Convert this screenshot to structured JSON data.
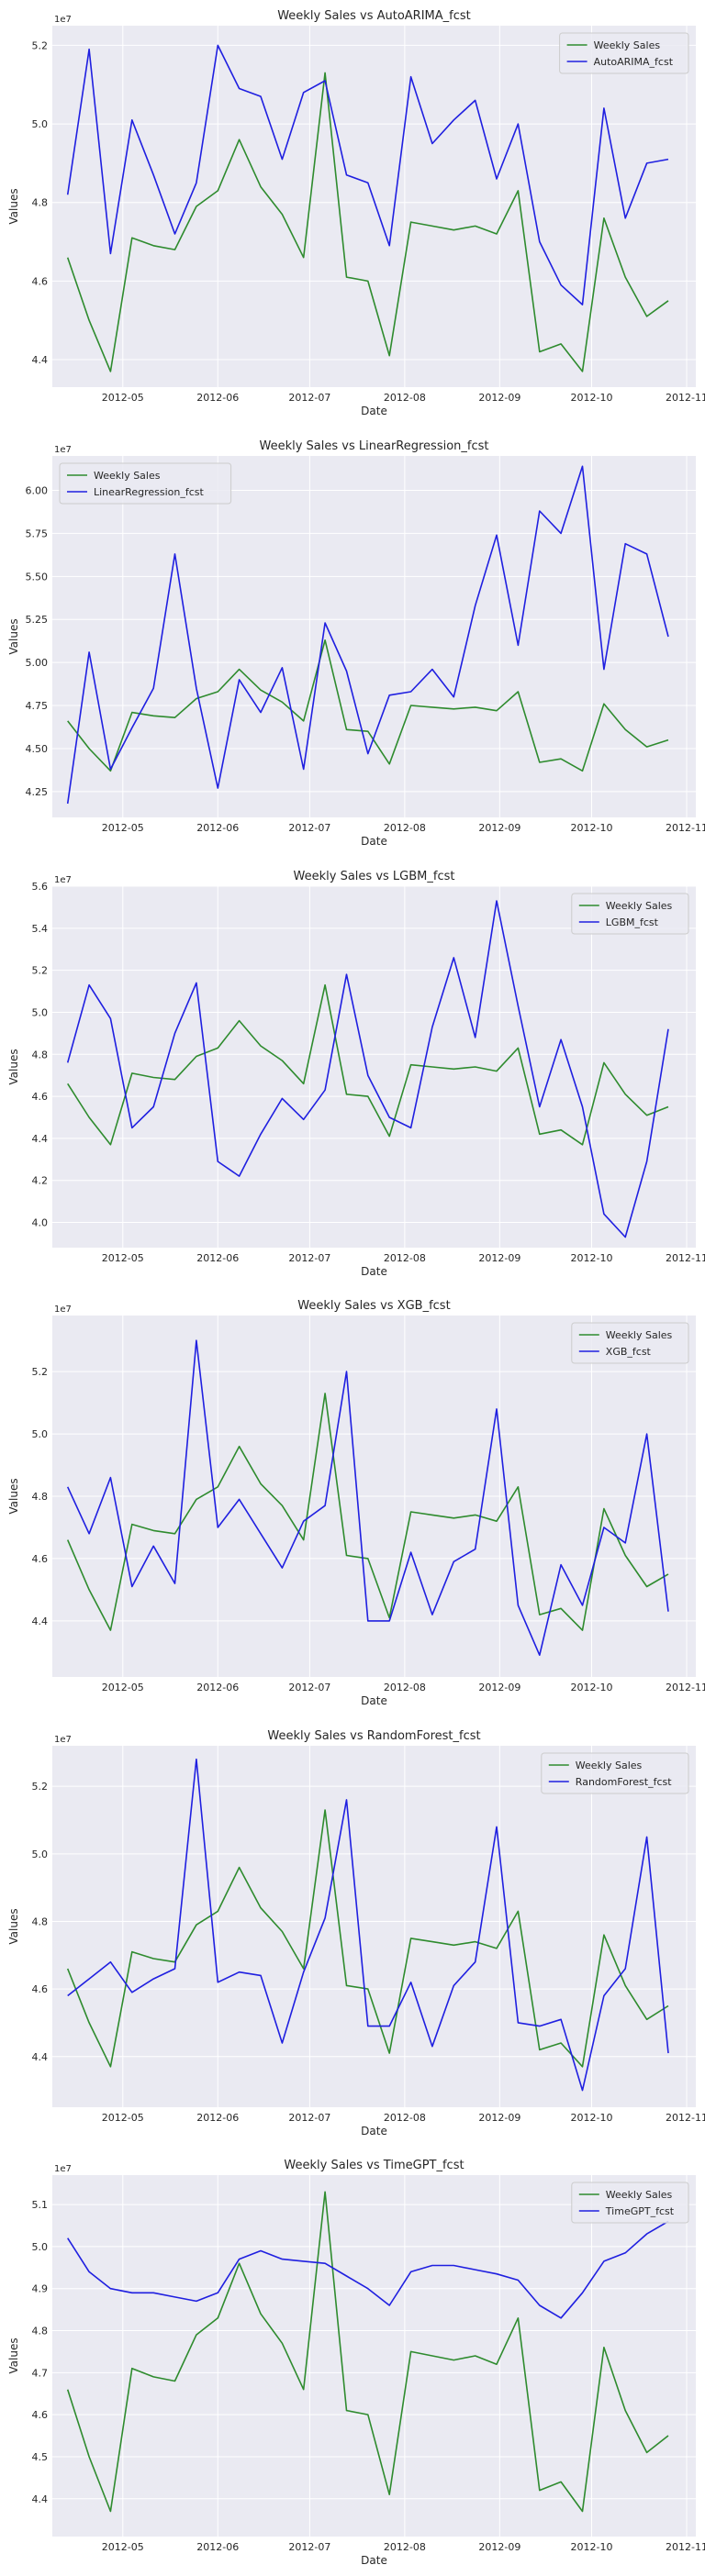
{
  "chart_data": [
    {
      "type": "line",
      "title": "Weekly Sales vs AutoARIMA_fcst",
      "xlabel": "Date",
      "ylabel": "Values",
      "offset_label": "1e7",
      "xlim": [
        "2012-04-08",
        "2012-11-04"
      ],
      "ylim": [
        4.33,
        5.25
      ],
      "yticks": [
        4.4,
        4.6,
        4.8,
        5.0,
        5.2
      ],
      "legend": "top-right",
      "grid": true,
      "series": [
        {
          "name": "Weekly Sales",
          "color": "#2e8b2e",
          "values": [
            4.66,
            4.5,
            4.37,
            4.71,
            4.69,
            4.68,
            4.79,
            4.83,
            4.96,
            4.84,
            4.77,
            4.66,
            5.13,
            4.61,
            4.6,
            4.41,
            4.75,
            4.74,
            4.73,
            4.74,
            4.72,
            4.83,
            4.42,
            4.44,
            4.37,
            4.76,
            4.61,
            4.51,
            4.55
          ]
        },
        {
          "name": "AutoARIMA_fcst",
          "color": "#1f1fe0",
          "values": [
            4.82,
            5.19,
            4.67,
            5.01,
            4.87,
            4.72,
            4.85,
            5.2,
            5.09,
            5.07,
            4.91,
            5.08,
            5.11,
            4.87,
            4.85,
            4.69,
            5.12,
            4.95,
            5.01,
            5.06,
            4.86,
            5.0,
            4.7,
            4.59,
            4.54,
            5.04,
            4.76,
            4.9,
            4.91
          ]
        }
      ]
    },
    {
      "type": "line",
      "title": "Weekly Sales vs LinearRegression_fcst",
      "xlabel": "Date",
      "ylabel": "Values",
      "offset_label": "1e7",
      "xlim": [
        "2012-04-08",
        "2012-11-04"
      ],
      "ylim": [
        4.1,
        6.2
      ],
      "yticks": [
        4.25,
        4.5,
        4.75,
        5.0,
        5.25,
        5.5,
        5.75,
        6.0
      ],
      "legend": "top-left",
      "grid": true,
      "series": [
        {
          "name": "Weekly Sales",
          "color": "#2e8b2e",
          "values": [
            4.66,
            4.5,
            4.37,
            4.71,
            4.69,
            4.68,
            4.79,
            4.83,
            4.96,
            4.84,
            4.77,
            4.66,
            5.13,
            4.61,
            4.6,
            4.41,
            4.75,
            4.74,
            4.73,
            4.74,
            4.72,
            4.83,
            4.42,
            4.44,
            4.37,
            4.76,
            4.61,
            4.51,
            4.55
          ]
        },
        {
          "name": "LinearRegression_fcst",
          "color": "#1f1fe0",
          "values": [
            4.18,
            5.06,
            4.38,
            4.62,
            4.85,
            5.63,
            4.85,
            4.27,
            4.9,
            4.71,
            4.97,
            4.38,
            5.23,
            4.95,
            4.47,
            4.81,
            4.83,
            4.96,
            4.8,
            5.33,
            5.74,
            5.1,
            5.88,
            5.75,
            6.14,
            4.96,
            5.69,
            5.63,
            5.15
          ]
        }
      ]
    },
    {
      "type": "line",
      "title": "Weekly Sales vs LGBM_fcst",
      "xlabel": "Date",
      "ylabel": "Values",
      "offset_label": "1e7",
      "xlim": [
        "2012-04-08",
        "2012-11-04"
      ],
      "ylim": [
        3.88,
        5.6
      ],
      "yticks": [
        4.0,
        4.2,
        4.4,
        4.6,
        4.8,
        5.0,
        5.2,
        5.4,
        5.6
      ],
      "legend": "top-right",
      "grid": true,
      "series": [
        {
          "name": "Weekly Sales",
          "color": "#2e8b2e",
          "values": [
            4.66,
            4.5,
            4.37,
            4.71,
            4.69,
            4.68,
            4.79,
            4.83,
            4.96,
            4.84,
            4.77,
            4.66,
            5.13,
            4.61,
            4.6,
            4.41,
            4.75,
            4.74,
            4.73,
            4.74,
            4.72,
            4.83,
            4.42,
            4.44,
            4.37,
            4.76,
            4.61,
            4.51,
            4.55
          ]
        },
        {
          "name": "LGBM_fcst",
          "color": "#1f1fe0",
          "values": [
            4.76,
            5.13,
            4.97,
            4.45,
            4.55,
            4.9,
            5.14,
            4.29,
            4.22,
            4.42,
            4.59,
            4.49,
            4.63,
            5.18,
            4.7,
            4.5,
            4.45,
            4.93,
            5.26,
            4.88,
            5.53,
            5.03,
            4.55,
            4.87,
            4.55,
            4.04,
            3.93,
            4.29,
            4.92
          ]
        }
      ]
    },
    {
      "type": "line",
      "title": "Weekly Sales vs XGB_fcst",
      "xlabel": "Date",
      "ylabel": "Values",
      "offset_label": "1e7",
      "xlim": [
        "2012-04-08",
        "2012-11-04"
      ],
      "ylim": [
        4.22,
        5.38
      ],
      "yticks": [
        4.4,
        4.6,
        4.8,
        5.0,
        5.2
      ],
      "legend": "top-right",
      "grid": true,
      "series": [
        {
          "name": "Weekly Sales",
          "color": "#2e8b2e",
          "values": [
            4.66,
            4.5,
            4.37,
            4.71,
            4.69,
            4.68,
            4.79,
            4.83,
            4.96,
            4.84,
            4.77,
            4.66,
            5.13,
            4.61,
            4.6,
            4.41,
            4.75,
            4.74,
            4.73,
            4.74,
            4.72,
            4.83,
            4.42,
            4.44,
            4.37,
            4.76,
            4.61,
            4.51,
            4.55
          ]
        },
        {
          "name": "XGB_fcst",
          "color": "#1f1fe0",
          "values": [
            4.83,
            4.68,
            4.86,
            4.51,
            4.64,
            4.52,
            5.3,
            4.7,
            4.79,
            4.68,
            4.57,
            4.72,
            4.77,
            5.2,
            4.4,
            4.4,
            4.62,
            4.42,
            4.59,
            4.63,
            5.08,
            4.45,
            4.29,
            4.58,
            4.45,
            4.7,
            4.65,
            5.0,
            4.43
          ]
        }
      ]
    },
    {
      "type": "line",
      "title": "Weekly Sales vs RandomForest_fcst",
      "xlabel": "Date",
      "ylabel": "Values",
      "offset_label": "1e7",
      "xlim": [
        "2012-04-08",
        "2012-11-04"
      ],
      "ylim": [
        4.25,
        5.32
      ],
      "yticks": [
        4.4,
        4.6,
        4.8,
        5.0,
        5.2
      ],
      "legend": "top-right",
      "grid": true,
      "series": [
        {
          "name": "Weekly Sales",
          "color": "#2e8b2e",
          "values": [
            4.66,
            4.5,
            4.37,
            4.71,
            4.69,
            4.68,
            4.79,
            4.83,
            4.96,
            4.84,
            4.77,
            4.66,
            5.13,
            4.61,
            4.6,
            4.41,
            4.75,
            4.74,
            4.73,
            4.74,
            4.72,
            4.83,
            4.42,
            4.44,
            4.37,
            4.76,
            4.61,
            4.51,
            4.55
          ]
        },
        {
          "name": "RandomForest_fcst",
          "color": "#1f1fe0",
          "values": [
            4.58,
            4.63,
            4.68,
            4.59,
            4.63,
            4.66,
            5.28,
            4.62,
            4.65,
            4.64,
            4.44,
            4.65,
            4.81,
            5.16,
            4.49,
            4.49,
            4.62,
            4.43,
            4.61,
            4.68,
            5.08,
            4.5,
            4.49,
            4.51,
            4.3,
            4.58,
            4.66,
            5.05,
            4.41
          ]
        }
      ]
    },
    {
      "type": "line",
      "title": "Weekly Sales vs TimeGPT_fcst",
      "xlabel": "Date",
      "ylabel": "Values",
      "offset_label": "1e7",
      "xlim": [
        "2012-04-08",
        "2012-11-04"
      ],
      "ylim": [
        4.31,
        5.17
      ],
      "yticks": [
        4.4,
        4.5,
        4.6,
        4.7,
        4.8,
        4.9,
        5.0,
        5.1
      ],
      "legend": "top-right",
      "grid": true,
      "series": [
        {
          "name": "Weekly Sales",
          "color": "#2e8b2e",
          "values": [
            4.66,
            4.5,
            4.37,
            4.71,
            4.69,
            4.68,
            4.79,
            4.83,
            4.96,
            4.84,
            4.77,
            4.66,
            5.13,
            4.61,
            4.6,
            4.41,
            4.75,
            4.74,
            4.73,
            4.74,
            4.72,
            4.83,
            4.42,
            4.44,
            4.37,
            4.76,
            4.61,
            4.51,
            4.55
          ]
        },
        {
          "name": "TimeGPT_fcst",
          "color": "#1f1fe0",
          "values": [
            5.02,
            4.94,
            4.9,
            4.89,
            4.89,
            4.88,
            4.87,
            4.89,
            4.97,
            4.99,
            4.97,
            4.965,
            4.96,
            4.93,
            4.9,
            4.86,
            4.94,
            4.955,
            4.955,
            4.945,
            4.935,
            4.92,
            4.86,
            4.83,
            4.89,
            4.965,
            4.985,
            5.03,
            5.06
          ]
        }
      ]
    }
  ],
  "shared": {
    "dates": [
      "2012-04-13",
      "2012-04-20",
      "2012-04-27",
      "2012-05-04",
      "2012-05-11",
      "2012-05-18",
      "2012-05-25",
      "2012-06-01",
      "2012-06-08",
      "2012-06-15",
      "2012-06-22",
      "2012-06-29",
      "2012-07-06",
      "2012-07-13",
      "2012-07-20",
      "2012-07-27",
      "2012-08-03",
      "2012-08-10",
      "2012-08-17",
      "2012-08-24",
      "2012-08-31",
      "2012-09-07",
      "2012-09-14",
      "2012-09-21",
      "2012-09-28",
      "2012-10-05",
      "2012-10-12",
      "2012-10-19",
      "2012-10-26"
    ],
    "xticks": [
      {
        "date": "2012-05-01",
        "label": "2012-05"
      },
      {
        "date": "2012-06-01",
        "label": "2012-06"
      },
      {
        "date": "2012-07-01",
        "label": "2012-07"
      },
      {
        "date": "2012-08-01",
        "label": "2012-08"
      },
      {
        "date": "2012-09-01",
        "label": "2012-09"
      },
      {
        "date": "2012-10-01",
        "label": "2012-10"
      },
      {
        "date": "2012-11-01",
        "label": "2012-11"
      }
    ],
    "plot_bg": "#eaeaf2",
    "grid_color": "#ffffff"
  }
}
